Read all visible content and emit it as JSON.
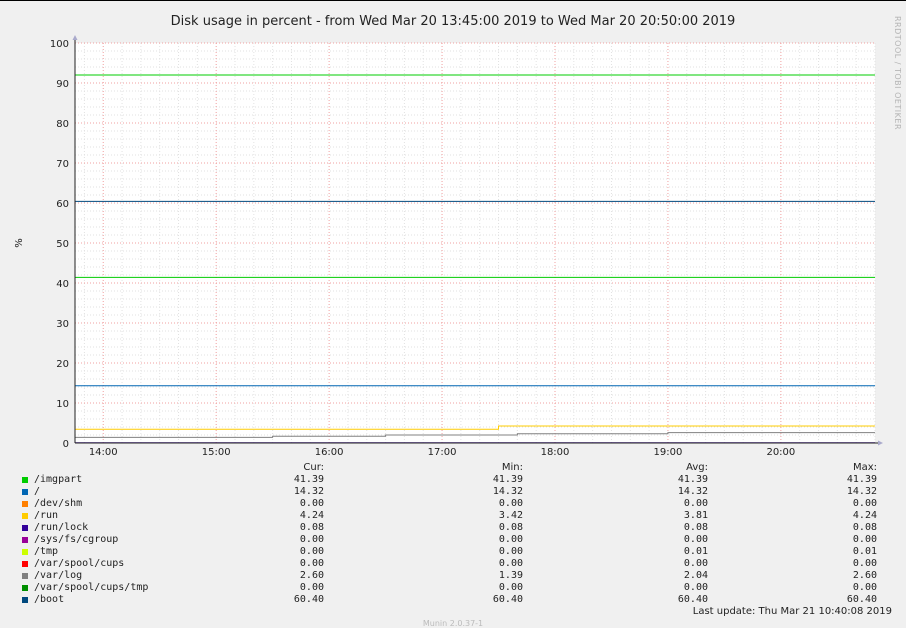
{
  "title": "Disk usage in percent - from Wed Mar 20 13:45:00 2019 to Wed Mar 20 20:50:00 2019",
  "side_text": "RRDTOOL / TOBI OETIKER",
  "footer_text": "Munin 2.0.37-1",
  "last_update": "Last update:  Thu Mar 21 10:40:08 2019",
  "legend": {
    "headers": [
      "Cur:",
      "Min:",
      "Avg:",
      "Max:"
    ],
    "rows": [
      {
        "name": "/imgpart",
        "color": "#00cc00",
        "cur": "41.39",
        "min": "41.39",
        "avg": "41.39",
        "max": "41.39"
      },
      {
        "name": "/",
        "color": "#0066b3",
        "cur": "14.32",
        "min": "14.32",
        "avg": "14.32",
        "max": "14.32"
      },
      {
        "name": "/dev/shm",
        "color": "#ff8000",
        "cur": "0.00",
        "min": "0.00",
        "avg": "0.00",
        "max": "0.00"
      },
      {
        "name": "/run",
        "color": "#ffcc00",
        "cur": "4.24",
        "min": "3.42",
        "avg": "3.81",
        "max": "4.24"
      },
      {
        "name": "/run/lock",
        "color": "#330099",
        "cur": "0.08",
        "min": "0.08",
        "avg": "0.08",
        "max": "0.08"
      },
      {
        "name": "/sys/fs/cgroup",
        "color": "#990099",
        "cur": "0.00",
        "min": "0.00",
        "avg": "0.00",
        "max": "0.00"
      },
      {
        "name": "/tmp",
        "color": "#ccff00",
        "cur": "0.00",
        "min": "0.00",
        "avg": "0.01",
        "max": "0.01"
      },
      {
        "name": "/var/spool/cups",
        "color": "#ff0000",
        "cur": "0.00",
        "min": "0.00",
        "avg": "0.00",
        "max": "0.00"
      },
      {
        "name": "/var/log",
        "color": "#808080",
        "cur": "2.60",
        "min": "1.39",
        "avg": "2.04",
        "max": "2.60"
      },
      {
        "name": "/var/spool/cups/tmp",
        "color": "#008f00",
        "cur": "0.00",
        "min": "0.00",
        "avg": "0.00",
        "max": "0.00"
      },
      {
        "name": "/boot",
        "color": "#00487d",
        "cur": "60.40",
        "min": "60.40",
        "avg": "60.40",
        "max": "60.40"
      }
    ]
  },
  "chart_data": {
    "type": "line",
    "title": "Disk usage in percent - from Wed Mar 20 13:45:00 2019 to Wed Mar 20 20:50:00 2019",
    "xlabel": "",
    "ylabel": "%",
    "ylim": [
      0,
      100
    ],
    "xlim": [
      "13:45",
      "20:50"
    ],
    "x_ticks": [
      "14:00",
      "15:00",
      "16:00",
      "17:00",
      "18:00",
      "19:00",
      "20:00"
    ],
    "y_ticks": [
      0,
      10,
      20,
      30,
      40,
      50,
      60,
      70,
      80,
      90,
      100
    ],
    "grid": true,
    "series": [
      {
        "name": "/imgpart",
        "color": "#00cc00",
        "x": [
          "13:45",
          "20:50"
        ],
        "values": [
          41.39,
          41.39
        ]
      },
      {
        "name": "/",
        "color": "#0066b3",
        "x": [
          "13:45",
          "20:50"
        ],
        "values": [
          14.32,
          14.32
        ]
      },
      {
        "name": "/dev/shm",
        "color": "#ff8000",
        "x": [
          "13:45",
          "20:50"
        ],
        "values": [
          0.0,
          0.0
        ]
      },
      {
        "name": "/run",
        "color": "#ffcc00",
        "x": [
          "13:45",
          "17:30",
          "17:30",
          "20:50"
        ],
        "values": [
          3.42,
          3.42,
          4.24,
          4.24
        ]
      },
      {
        "name": "/run/lock",
        "color": "#330099",
        "x": [
          "13:45",
          "20:50"
        ],
        "values": [
          0.08,
          0.08
        ]
      },
      {
        "name": "/sys/fs/cgroup",
        "color": "#990099",
        "x": [
          "13:45",
          "20:50"
        ],
        "values": [
          0.0,
          0.0
        ]
      },
      {
        "name": "/tmp",
        "color": "#ccff00",
        "x": [
          "13:45",
          "20:50"
        ],
        "values": [
          0.0,
          0.0
        ]
      },
      {
        "name": "/var/spool/cups",
        "color": "#ff0000",
        "x": [
          "13:45",
          "20:50"
        ],
        "values": [
          0.0,
          0.0
        ]
      },
      {
        "name": "/var/log",
        "color": "#808080",
        "x": [
          "13:45",
          "15:30",
          "15:30",
          "16:30",
          "16:30",
          "17:40",
          "17:40",
          "19:00",
          "19:00",
          "20:50"
        ],
        "values": [
          1.39,
          1.39,
          1.7,
          1.7,
          2.0,
          2.0,
          2.3,
          2.3,
          2.6,
          2.6
        ]
      },
      {
        "name": "/var/spool/cups/tmp",
        "color": "#008f00",
        "x": [
          "13:45",
          "20:50"
        ],
        "values": [
          0.0,
          0.0
        ]
      },
      {
        "name": "/boot",
        "color": "#00487d",
        "x": [
          "13:45",
          "20:50"
        ],
        "values": [
          60.4,
          60.4
        ]
      },
      {
        "name": "",
        "color": "#00cc00",
        "x": [
          "13:45",
          "20:50"
        ],
        "values": [
          92.0,
          92.0
        ]
      }
    ]
  }
}
